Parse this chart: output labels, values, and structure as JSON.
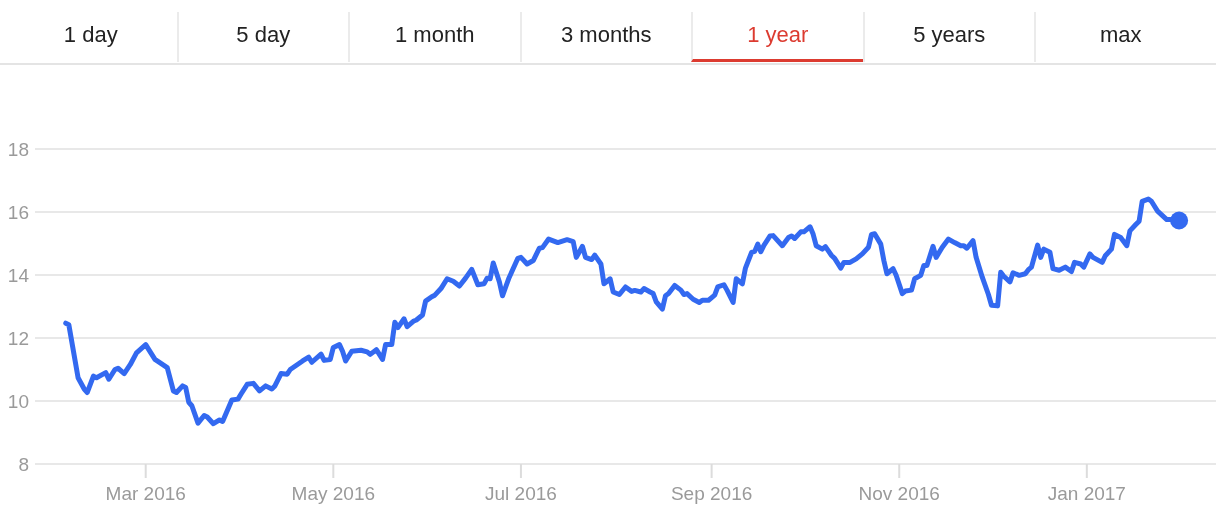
{
  "chart_data": [
    {
      "type": "other",
      "categories": [
        "1 day",
        "5 day",
        "1 month",
        "3 months",
        "1 year",
        "5 years",
        "max"
      ],
      "colors": [
        null,
        null,
        null,
        null,
        "#dc3b30",
        null,
        null
      ]
    },
    {
      "type": "line",
      "x": [
        "2016-02-04",
        "2016-02-05",
        "2016-02-08",
        "2016-02-10",
        "2016-02-11",
        "2016-02-13",
        "2016-02-14",
        "2016-02-17",
        "2016-02-18",
        "2016-02-20",
        "2016-02-21",
        "2016-02-23",
        "2016-02-25",
        "2016-02-27",
        "2016-03-01",
        "2016-03-02",
        "2016-03-04",
        "2016-03-08",
        "2016-03-10",
        "2016-03-11",
        "2016-03-13",
        "2016-03-14",
        "2016-03-15",
        "2016-03-16",
        "2016-03-18",
        "2016-03-20",
        "2016-03-21",
        "2016-03-23",
        "2016-03-25",
        "2016-03-26",
        "2016-03-29",
        "2016-03-31",
        "2016-04-01",
        "2016-04-03",
        "2016-04-05",
        "2016-04-07",
        "2016-04-09",
        "2016-04-11",
        "2016-04-12",
        "2016-04-14",
        "2016-04-16",
        "2016-04-17",
        "2016-04-21",
        "2016-04-23",
        "2016-04-24",
        "2016-04-27",
        "2016-04-28",
        "2016-04-30",
        "2016-05-01",
        "2016-05-03",
        "2016-05-04",
        "2016-05-05",
        "2016-05-07",
        "2016-05-10",
        "2016-05-12",
        "2016-05-13",
        "2016-05-15",
        "2016-05-17",
        "2016-05-18",
        "2016-05-20",
        "2016-05-21",
        "2016-05-22",
        "2016-05-24",
        "2016-05-25",
        "2016-05-27",
        "2016-05-28",
        "2016-05-30",
        "2016-05-31",
        "2016-06-02",
        "2016-06-03",
        "2016-06-05",
        "2016-06-07",
        "2016-06-09",
        "2016-06-11",
        "2016-06-13",
        "2016-06-15",
        "2016-06-17",
        "2016-06-19",
        "2016-06-20",
        "2016-06-21",
        "2016-06-22",
        "2016-06-24",
        "2016-06-25",
        "2016-06-27",
        "2016-06-30",
        "2016-07-01",
        "2016-07-03",
        "2016-07-05",
        "2016-07-07",
        "2016-07-08",
        "2016-07-10",
        "2016-07-13",
        "2016-07-16",
        "2016-07-18",
        "2016-07-19",
        "2016-07-21",
        "2016-07-22",
        "2016-07-24",
        "2016-07-25",
        "2016-07-27",
        "2016-07-28",
        "2016-07-30",
        "2016-07-31",
        "2016-08-02",
        "2016-08-04",
        "2016-08-06",
        "2016-08-07",
        "2016-08-09",
        "2016-08-10",
        "2016-08-12",
        "2016-08-13",
        "2016-08-14",
        "2016-08-16",
        "2016-08-17",
        "2016-08-18",
        "2016-08-20",
        "2016-08-22",
        "2016-08-23",
        "2016-08-24",
        "2016-08-26",
        "2016-08-28",
        "2016-08-29",
        "2016-08-31",
        "2016-09-02",
        "2016-09-03",
        "2016-09-05",
        "2016-09-06",
        "2016-09-08",
        "2016-09-09",
        "2016-09-11",
        "2016-09-12",
        "2016-09-14",
        "2016-09-15",
        "2016-09-16",
        "2016-09-17",
        "2016-09-18",
        "2016-09-20",
        "2016-09-21",
        "2016-09-24",
        "2016-09-26",
        "2016-09-27",
        "2016-09-28",
        "2016-09-30",
        "2016-10-01",
        "2016-10-03",
        "2016-10-04",
        "2016-10-05",
        "2016-10-07",
        "2016-10-08",
        "2016-10-10",
        "2016-10-11",
        "2016-10-13",
        "2016-10-14",
        "2016-10-16",
        "2016-10-18",
        "2016-10-20",
        "2016-10-22",
        "2016-10-23",
        "2016-10-24",
        "2016-10-26",
        "2016-10-27",
        "2016-10-28",
        "2016-10-30",
        "2016-10-31",
        "2016-11-02",
        "2016-11-03",
        "2016-11-05",
        "2016-11-06",
        "2016-11-08",
        "2016-11-09",
        "2016-11-10",
        "2016-11-12",
        "2016-11-13",
        "2016-11-15",
        "2016-11-17",
        "2016-11-19",
        "2016-11-21",
        "2016-11-22",
        "2016-11-23",
        "2016-11-25",
        "2016-11-26",
        "2016-11-28",
        "2016-11-30",
        "2016-12-01",
        "2016-12-03",
        "2016-12-04",
        "2016-12-05",
        "2016-12-07",
        "2016-12-08",
        "2016-12-10",
        "2016-12-12",
        "2016-12-13",
        "2016-12-14",
        "2016-12-16",
        "2016-12-17",
        "2016-12-18",
        "2016-12-20",
        "2016-12-21",
        "2016-12-23",
        "2016-12-25",
        "2016-12-27",
        "2016-12-28",
        "2016-12-30",
        "2016-12-31",
        "2017-01-02",
        "2017-01-03",
        "2017-01-06",
        "2017-01-07",
        "2017-01-09",
        "2017-01-10",
        "2017-01-12",
        "2017-01-14",
        "2017-01-15",
        "2017-01-17",
        "2017-01-18",
        "2017-01-19",
        "2017-01-21",
        "2017-01-22",
        "2017-01-24",
        "2017-01-27",
        "2017-01-28",
        "2017-01-31"
      ],
      "series": [
        {
          "type": "line",
          "color": "#3369f0",
          "values": [
            12.47,
            12.42,
            10.74,
            10.38,
            10.27,
            10.79,
            10.74,
            10.9,
            10.69,
            11.0,
            11.04,
            10.87,
            11.16,
            11.53,
            11.79,
            11.63,
            11.32,
            11.06,
            10.32,
            10.27,
            10.48,
            10.43,
            9.96,
            9.85,
            9.3,
            9.54,
            9.49,
            9.28,
            9.4,
            9.35,
            10.03,
            10.06,
            10.22,
            10.53,
            10.56,
            10.32,
            10.48,
            10.38,
            10.48,
            10.87,
            10.85,
            11.0,
            11.27,
            11.39,
            11.23,
            11.49,
            11.29,
            11.32,
            11.7,
            11.79,
            11.58,
            11.27,
            11.58,
            11.61,
            11.56,
            11.48,
            11.63,
            11.32,
            11.79,
            11.79,
            12.5,
            12.33,
            12.61,
            12.36,
            12.53,
            12.57,
            12.73,
            13.17,
            13.31,
            13.36,
            13.57,
            13.88,
            13.8,
            13.65,
            13.9,
            14.18,
            13.69,
            13.72,
            13.9,
            13.88,
            14.38,
            13.78,
            13.34,
            13.88,
            14.53,
            14.56,
            14.35,
            14.46,
            14.85,
            14.87,
            15.14,
            15.03,
            15.12,
            15.06,
            14.56,
            14.91,
            14.56,
            14.49,
            14.63,
            14.35,
            13.72,
            13.88,
            13.46,
            13.38,
            13.62,
            13.48,
            13.51,
            13.46,
            13.57,
            13.46,
            13.41,
            13.15,
            12.92,
            13.34,
            13.41,
            13.67,
            13.52,
            13.38,
            13.41,
            13.23,
            13.13,
            13.2,
            13.2,
            13.36,
            13.62,
            13.69,
            13.52,
            13.13,
            13.88,
            13.72,
            14.22,
            14.72,
            14.75,
            14.98,
            14.74,
            14.94,
            15.24,
            15.25,
            14.93,
            15.19,
            15.24,
            15.16,
            15.37,
            15.37,
            15.53,
            15.3,
            14.93,
            14.82,
            14.9,
            14.62,
            14.53,
            14.22,
            14.4,
            14.4,
            14.51,
            14.67,
            14.88,
            15.29,
            15.31,
            14.98,
            14.46,
            14.04,
            14.2,
            13.99,
            13.41,
            13.49,
            13.52,
            13.88,
            13.99,
            14.3,
            14.3,
            14.91,
            14.56,
            14.88,
            15.14,
            15.03,
            14.93,
            14.93,
            14.85,
            15.09,
            14.56,
            13.93,
            13.38,
            13.04,
            13.02,
            14.09,
            13.96,
            13.78,
            14.07,
            13.99,
            14.04,
            14.17,
            14.25,
            14.95,
            14.56,
            14.82,
            14.72,
            14.2,
            14.15,
            14.25,
            14.11,
            14.4,
            14.35,
            14.25,
            14.67,
            14.56,
            14.4,
            14.61,
            14.82,
            15.29,
            15.19,
            14.93,
            15.4,
            15.61,
            15.71,
            16.34,
            16.41,
            16.34,
            16.03,
            15.76,
            15.76,
            15.73
          ]
        },
        {
          "type": "scatter",
          "color": "#3369f0",
          "marker": "circle",
          "x": [
            "2017-01-31"
          ],
          "values": [
            15.73
          ]
        }
      ],
      "xlim": [
        "2016-01-25",
        "2017-02-12"
      ],
      "xticks": [
        {
          "value": "2016-03-01",
          "label": "Mar 2016"
        },
        {
          "value": "2016-05-01",
          "label": "May 2016"
        },
        {
          "value": "2016-07-01",
          "label": "Jul 2016"
        },
        {
          "value": "2016-09-01",
          "label": "Sep 2016"
        },
        {
          "value": "2016-11-01",
          "label": "Nov 2016"
        },
        {
          "value": "2017-01-01",
          "label": "Jan 2017"
        }
      ],
      "ylim": [
        8,
        18
      ],
      "yticks": [
        8,
        10,
        12,
        14,
        16,
        18
      ],
      "grid": "y"
    }
  ]
}
